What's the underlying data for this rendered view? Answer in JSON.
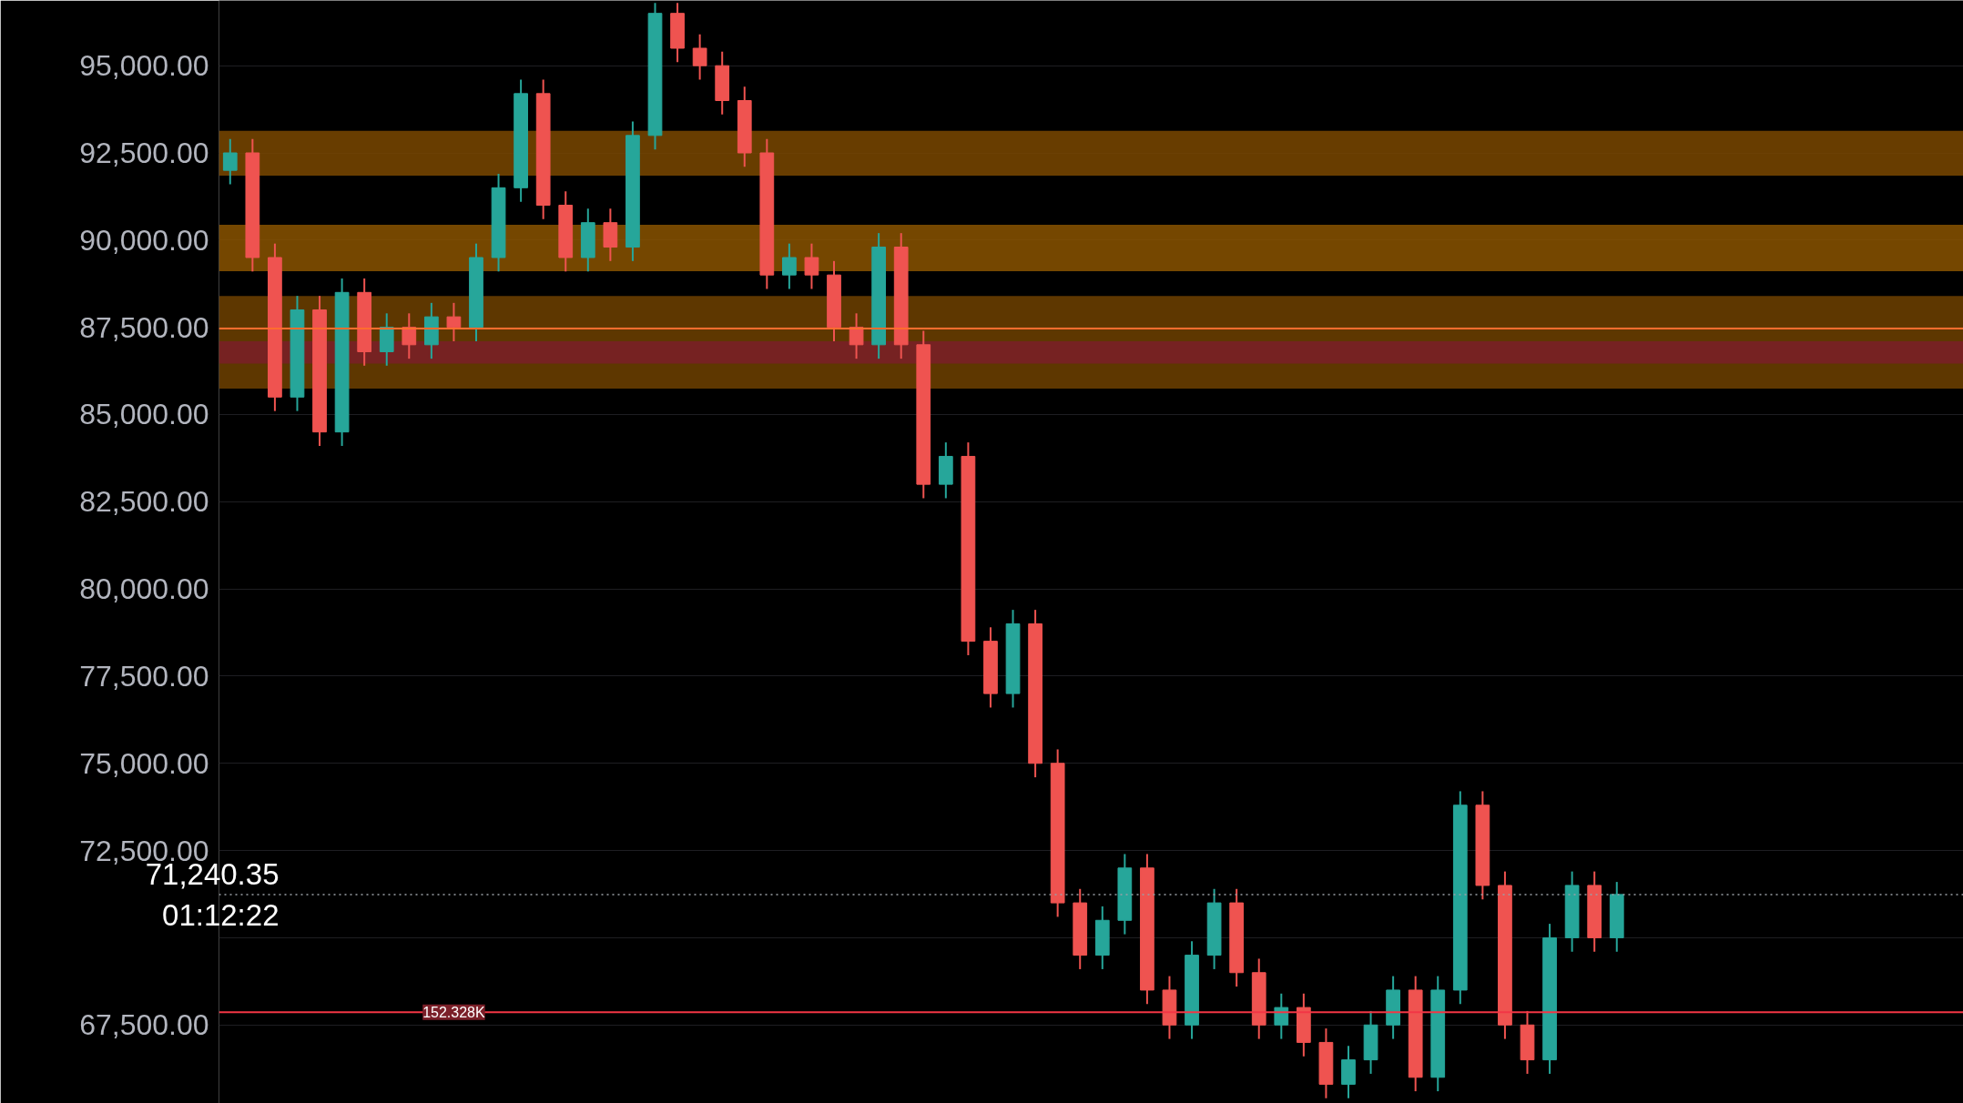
{
  "chart_data": {
    "type": "candlestick",
    "categories": [
      null,
      null,
      null,
      null,
      null,
      null,
      null,
      null,
      null,
      null,
      null,
      null,
      null,
      null,
      null,
      null,
      null,
      null,
      null,
      null,
      null,
      null,
      null,
      null,
      null,
      null,
      null,
      null,
      null,
      null,
      null,
      null,
      null,
      null,
      null,
      null,
      null,
      null,
      null,
      null,
      null,
      null,
      null,
      null,
      null,
      null,
      null,
      null,
      null,
      null,
      null,
      null,
      null,
      null,
      null,
      null,
      null,
      null,
      null,
      null,
      null,
      null,
      null,
      null,
      null,
      null,
      null,
      null,
      null,
      null,
      null,
      null,
      null,
      null,
      null,
      null,
      null,
      null
    ],
    "ohlc": [
      [
        92000,
        92900,
        91600,
        92500
      ],
      [
        92500,
        92900,
        89100,
        89500
      ],
      [
        89500,
        89900,
        85100,
        85500
      ],
      [
        85500,
        88400,
        85100,
        88000
      ],
      [
        88000,
        88400,
        84100,
        84500
      ],
      [
        84500,
        88900,
        84100,
        88500
      ],
      [
        88500,
        88900,
        86400,
        86800
      ],
      [
        86800,
        87900,
        86400,
        87500
      ],
      [
        87500,
        87900,
        86600,
        87000
      ],
      [
        87000,
        88200,
        86600,
        87800
      ],
      [
        87800,
        88200,
        87100,
        87500
      ],
      [
        87500,
        89900,
        87100,
        89500
      ],
      [
        89500,
        91900,
        89100,
        91500
      ],
      [
        91500,
        94600,
        91100,
        94200
      ],
      [
        94200,
        94600,
        90600,
        91000
      ],
      [
        91000,
        91400,
        89100,
        89500
      ],
      [
        89500,
        90900,
        89100,
        90500
      ],
      [
        90500,
        90900,
        89400,
        89800
      ],
      [
        89800,
        93400,
        89400,
        93000
      ],
      [
        93000,
        96800,
        92600,
        96500
      ],
      [
        96500,
        96800,
        95100,
        95500
      ],
      [
        95500,
        95900,
        94600,
        95000
      ],
      [
        95000,
        95400,
        93600,
        94000
      ],
      [
        94000,
        94400,
        92100,
        92500
      ],
      [
        92500,
        92900,
        88600,
        89000
      ],
      [
        89000,
        89900,
        88600,
        89500
      ],
      [
        89500,
        89900,
        88600,
        89000
      ],
      [
        89000,
        89400,
        87100,
        87500
      ],
      [
        87500,
        87900,
        86600,
        87000
      ],
      [
        87000,
        90200,
        86600,
        89800
      ],
      [
        89800,
        90200,
        86600,
        87000
      ],
      [
        87000,
        87400,
        82600,
        83000
      ],
      [
        83000,
        84200,
        82600,
        83800
      ],
      [
        83800,
        84200,
        78100,
        78500
      ],
      [
        78500,
        78900,
        76600,
        77000
      ],
      [
        77000,
        79400,
        76600,
        79000
      ],
      [
        79000,
        79400,
        74600,
        75000
      ],
      [
        75000,
        75400,
        70600,
        71000
      ],
      [
        71000,
        71400,
        69100,
        69500
      ],
      [
        69500,
        70900,
        69100,
        70500
      ],
      [
        70500,
        72400,
        70100,
        72000
      ],
      [
        72000,
        72400,
        68100,
        68500
      ],
      [
        68500,
        68900,
        67100,
        67500
      ],
      [
        67500,
        69900,
        67100,
        69500
      ],
      [
        69500,
        71400,
        69100,
        71000
      ],
      [
        71000,
        71400,
        68600,
        69000
      ],
      [
        69000,
        69400,
        67100,
        67500
      ],
      [
        67500,
        68400,
        67100,
        68000
      ],
      [
        68000,
        68400,
        66600,
        67000
      ],
      [
        67000,
        67400,
        65400,
        65800
      ],
      [
        65800,
        66900,
        65400,
        66500
      ],
      [
        66500,
        67900,
        66100,
        67500
      ],
      [
        67500,
        68900,
        67100,
        68500
      ],
      [
        68500,
        68900,
        65600,
        66000
      ],
      [
        66000,
        68900,
        65600,
        68500
      ],
      [
        68500,
        74200,
        68100,
        73800
      ],
      [
        73800,
        74200,
        71100,
        71500
      ],
      [
        71500,
        71900,
        67100,
        67500
      ],
      [
        67500,
        67900,
        66100,
        66500
      ],
      [
        66500,
        70400,
        66100,
        70000
      ],
      [
        70000,
        71900,
        69600,
        71500
      ],
      [
        71500,
        71900,
        69600,
        70000
      ],
      [
        70000,
        71600,
        69600,
        71240.35
      ],
      null,
      null,
      null,
      null,
      null,
      null,
      null,
      null,
      null,
      null,
      null,
      null,
      null,
      null,
      null
    ],
    "colors": [
      "#26a69a",
      "#ef5350",
      "#ef5350",
      "#26a69a",
      "#ef5350",
      "#26a69a",
      "#ef5350",
      "#26a69a",
      "#ef5350",
      "#26a69a",
      "#ef5350",
      "#26a69a",
      "#26a69a",
      "#26a69a",
      "#ef5350",
      "#ef5350",
      "#26a69a",
      "#ef5350",
      "#26a69a",
      "#26a69a",
      "#ef5350",
      "#ef5350",
      "#ef5350",
      "#ef5350",
      "#ef5350",
      "#26a69a",
      "#ef5350",
      "#ef5350",
      "#ef5350",
      "#26a69a",
      "#ef5350",
      "#ef5350",
      "#26a69a",
      "#ef5350",
      "#ef5350",
      "#26a69a",
      "#ef5350",
      "#ef5350",
      "#ef5350",
      "#26a69a",
      "#26a69a",
      "#ef5350",
      "#ef5350",
      "#26a69a",
      "#26a69a",
      "#ef5350",
      "#ef5350",
      "#26a69a",
      "#ef5350",
      "#ef5350",
      "#26a69a",
      "#26a69a",
      "#26a69a",
      "#ef5350",
      "#26a69a",
      "#26a69a",
      "#ef5350",
      "#ef5350",
      "#ef5350",
      "#26a69a",
      "#26a69a",
      "#ef5350",
      "#26a69a",
      null,
      null,
      null,
      null,
      null,
      null,
      null,
      null,
      null,
      null,
      null,
      null,
      null,
      null,
      null
    ],
    "ylim": [
      65250,
      96870
    ],
    "yticks": [
      {
        "value": 67500,
        "label": "67,500.00"
      },
      {
        "value": 70000,
        "label": null
      },
      {
        "value": 72500,
        "label": "72,500.00"
      },
      {
        "value": 75000,
        "label": "75,000.00"
      },
      {
        "value": 77500,
        "label": "77,500.00"
      },
      {
        "value": 80000,
        "label": "80,000.00"
      },
      {
        "value": 82500,
        "label": "82,500.00"
      },
      {
        "value": 85000,
        "label": "85,000.00"
      },
      {
        "value": 87500,
        "label": "87,500.00"
      },
      {
        "value": 90000,
        "label": "90,000.00"
      },
      {
        "value": 92500,
        "label": "92,500.00"
      },
      {
        "value": 95000,
        "label": "95,000.00"
      }
    ],
    "grid": "y",
    "bands": [
      {
        "axis": "y",
        "from": 91850,
        "to": 93130,
        "color": "#7a4800"
      },
      {
        "axis": "y",
        "from": 89110,
        "to": 90440,
        "color": "#8a5400"
      },
      {
        "axis": "y",
        "from": 85740,
        "to": 88400,
        "color": "#6e4100"
      },
      {
        "axis": "y",
        "from": 86460,
        "to": 87100,
        "color": "#7a1f28"
      }
    ],
    "ref_lines": [
      {
        "axis": "y",
        "value": 71240.35,
        "label": "71,240.35",
        "color": "#9aa0a6",
        "line_style": "dotted"
      },
      {
        "axis": "y",
        "value": 67865,
        "label": "152.328K",
        "color": "#f23645",
        "line_style": "solid"
      },
      {
        "axis": "y",
        "value": 87462,
        "color": "#ff6d2e",
        "line_style": "solid"
      }
    ],
    "annotations": [
      "01:12:22"
    ]
  }
}
